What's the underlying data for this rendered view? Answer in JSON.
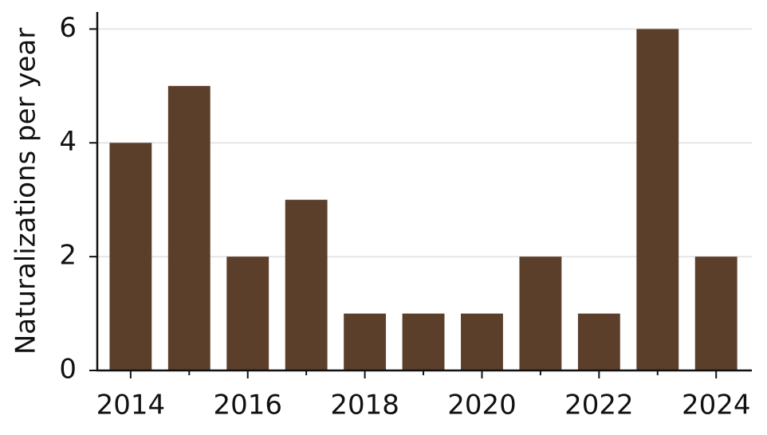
{
  "chart_data": {
    "type": "bar",
    "y_label": "Naturalizations per year",
    "x": [
      2014,
      2015,
      2016,
      2017,
      2018,
      2019,
      2020,
      2021,
      2022,
      2023,
      2024
    ],
    "values": [
      4,
      5,
      2,
      3,
      1,
      1,
      1,
      2,
      1,
      6,
      2
    ],
    "color": "#5c3f2b",
    "xlim": [
      2013.43,
      2024.61
    ],
    "xticks": [
      2014,
      2016,
      2018,
      2020,
      2022,
      2024
    ],
    "ylim": [
      0,
      6.3
    ],
    "yticks": [
      0,
      2,
      4,
      6
    ],
    "grid": true
  }
}
